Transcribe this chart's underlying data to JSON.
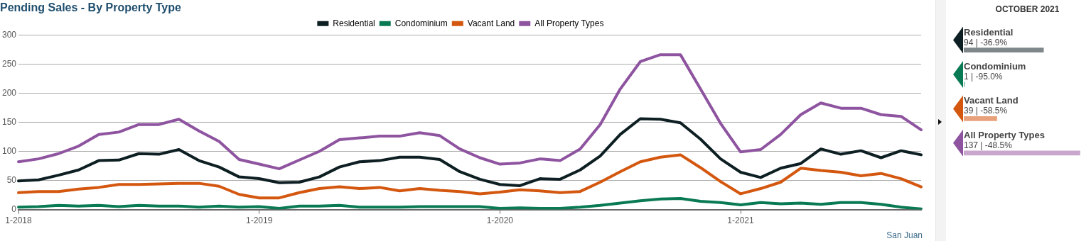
{
  "chart_data": [
    {
      "type": "line",
      "title": "Pending Sales - By Property Type",
      "categories": [
        "1-2018",
        null,
        null,
        null,
        null,
        null,
        null,
        null,
        null,
        null,
        null,
        null,
        "1-2019",
        null,
        null,
        null,
        null,
        null,
        null,
        null,
        null,
        null,
        null,
        null,
        "1-2020",
        null,
        null,
        null,
        null,
        null,
        null,
        null,
        null,
        null,
        null,
        null,
        "1-2021",
        null,
        null,
        null,
        null,
        null,
        null,
        null,
        null,
        null
      ],
      "series": [
        {
          "name": "Residential",
          "color": "#0d1f22",
          "values": [
            49,
            51,
            59,
            68,
            84,
            85,
            96,
            95,
            103,
            84,
            73,
            56,
            53,
            46,
            47,
            56,
            73,
            82,
            84,
            90,
            90,
            86,
            65,
            52,
            43,
            41,
            53,
            52,
            68,
            92,
            129,
            156,
            155,
            149,
            121,
            87,
            64,
            55,
            71,
            79,
            104,
            95,
            101,
            89,
            101,
            94
          ]
        },
        {
          "name": "Condominium",
          "color": "#0a7a55",
          "values": [
            4,
            5,
            7,
            6,
            7,
            5,
            7,
            6,
            6,
            4,
            6,
            4,
            5,
            2,
            6,
            6,
            7,
            4,
            4,
            4,
            5,
            5,
            5,
            5,
            2,
            3,
            2,
            2,
            4,
            7,
            11,
            15,
            18,
            19,
            14,
            12,
            8,
            12,
            10,
            11,
            9,
            12,
            12,
            9,
            4,
            1
          ]
        },
        {
          "name": "Vacant Land",
          "color": "#d4570f",
          "values": [
            29,
            31,
            31,
            35,
            38,
            43,
            43,
            44,
            45,
            45,
            40,
            26,
            20,
            20,
            29,
            36,
            39,
            36,
            38,
            32,
            36,
            33,
            31,
            27,
            30,
            34,
            32,
            29,
            31,
            47,
            65,
            82,
            90,
            94,
            72,
            48,
            27,
            36,
            47,
            71,
            67,
            64,
            58,
            62,
            53,
            39
          ]
        },
        {
          "name": "All Property Types",
          "color": "#8e54a0",
          "values": [
            82,
            87,
            96,
            109,
            129,
            133,
            146,
            146,
            155,
            135,
            117,
            86,
            78,
            70,
            85,
            100,
            120,
            123,
            126,
            126,
            132,
            127,
            104,
            89,
            78,
            80,
            87,
            84,
            104,
            146,
            207,
            254,
            266,
            266,
            207,
            148,
            99,
            103,
            129,
            163,
            183,
            174,
            174,
            163,
            160,
            137
          ]
        }
      ],
      "ylim": [
        0,
        300
      ],
      "yticks": [
        0,
        50,
        100,
        150,
        200,
        250,
        300
      ],
      "grid": "y",
      "legend": "top",
      "marker": "none",
      "line_style": "solid",
      "annotations": [
        "San Juan"
      ]
    },
    {
      "type": "bar",
      "orientation": "horizontal",
      "title": "OCTOBER 2021",
      "categories": [
        "Residential",
        "Condominium",
        "Vacant Land",
        "All Property Types"
      ],
      "values": [
        94,
        1,
        39,
        137
      ],
      "colors": [
        "#7f878a",
        "#7fbfa5",
        "#e8a17a",
        "#c9a6cc"
      ],
      "value_labels": [
        "94 | -36.9%",
        "1 | -95.0%",
        "39 | -58.5%",
        "137 | -48.5%"
      ]
    }
  ]
}
